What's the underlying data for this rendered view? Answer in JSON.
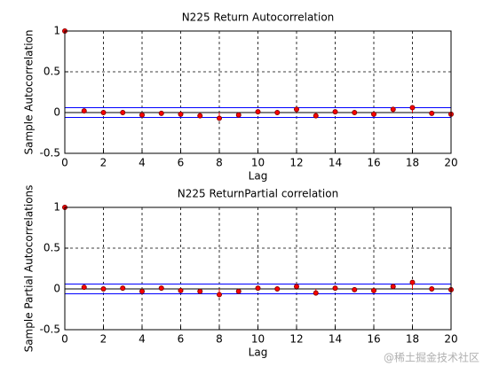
{
  "chart_data": [
    {
      "type": "stem",
      "title": "N225 Return Autocorrelation",
      "xlabel": "Lag",
      "ylabel": "Sample Autocorrelation",
      "x": [
        0,
        1,
        2,
        3,
        4,
        5,
        6,
        7,
        8,
        9,
        10,
        11,
        12,
        13,
        14,
        15,
        16,
        17,
        18,
        19,
        20
      ],
      "values": [
        1,
        0.02,
        0.0,
        0.0,
        -0.03,
        -0.01,
        -0.02,
        -0.04,
        -0.07,
        -0.03,
        0.01,
        0.0,
        0.04,
        -0.04,
        0.01,
        0.0,
        -0.02,
        0.04,
        0.06,
        -0.01,
        -0.02
      ],
      "color": "#ff0000",
      "bounds": [
        0.06,
        -0.06
      ],
      "bounds_color": "#0000ff",
      "xlim": [
        0,
        20
      ],
      "xticks": [
        0,
        2,
        4,
        6,
        8,
        10,
        12,
        14,
        16,
        18,
        20
      ],
      "ylim": [
        -0.5,
        1
      ],
      "yticks": [
        -0.5,
        0,
        0.5,
        1
      ],
      "grid": true
    },
    {
      "type": "stem",
      "title": "N225 ReturnPartial correlation",
      "xlabel": "Lag",
      "ylabel": "Sample Partial Autocorrelations",
      "x": [
        0,
        1,
        2,
        3,
        4,
        5,
        6,
        7,
        8,
        9,
        10,
        11,
        12,
        13,
        14,
        15,
        16,
        17,
        18,
        19,
        20
      ],
      "values": [
        1,
        0.02,
        0.0,
        0.01,
        -0.03,
        0.01,
        -0.02,
        -0.03,
        -0.07,
        -0.03,
        0.01,
        0.0,
        0.03,
        -0.05,
        0.01,
        -0.01,
        -0.02,
        0.03,
        0.08,
        0.0,
        -0.01
      ],
      "color": "#ff0000",
      "bounds": [
        0.06,
        -0.06
      ],
      "bounds_color": "#0000ff",
      "xlim": [
        0,
        20
      ],
      "xticks": [
        0,
        2,
        4,
        6,
        8,
        10,
        12,
        14,
        16,
        18,
        20
      ],
      "ylim": [
        -0.5,
        1
      ],
      "yticks": [
        -0.5,
        0,
        0.5,
        1
      ],
      "grid": true
    }
  ],
  "watermark": "@稀土掘金技术社区"
}
